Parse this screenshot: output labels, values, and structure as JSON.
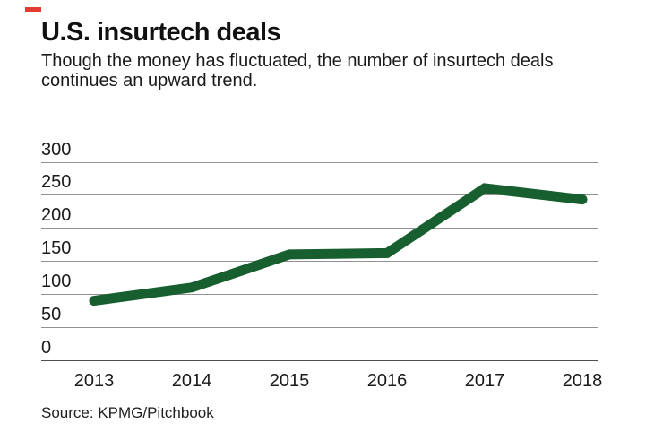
{
  "header": {
    "title": "U.S. insurtech deals",
    "subtitle": "Though the money has fluctuated, the number of insurtech deals continues an upward trend."
  },
  "chart_data": {
    "type": "line",
    "title": "U.S. insurtech deals",
    "categories": [
      "2013",
      "2014",
      "2015",
      "2016",
      "2017",
      "2018"
    ],
    "series": [
      {
        "name": "U.S. insurtech deals",
        "values": [
          90,
          110,
          160,
          162,
          260,
          243
        ]
      }
    ],
    "ylim": [
      0,
      300
    ],
    "yticks": [
      0,
      50,
      100,
      150,
      200,
      250,
      300
    ],
    "grid": true,
    "legend": "none",
    "line_color": "#175f2f"
  },
  "footer": {
    "source": "Source: KPMG/Pitchbook"
  },
  "colors": {
    "accent_dash": "#e43b30",
    "line_green": "#175f2f",
    "grid_gray": "#919191",
    "baseline_gray": "#4f4f4f",
    "text": "#1a1a1a"
  }
}
